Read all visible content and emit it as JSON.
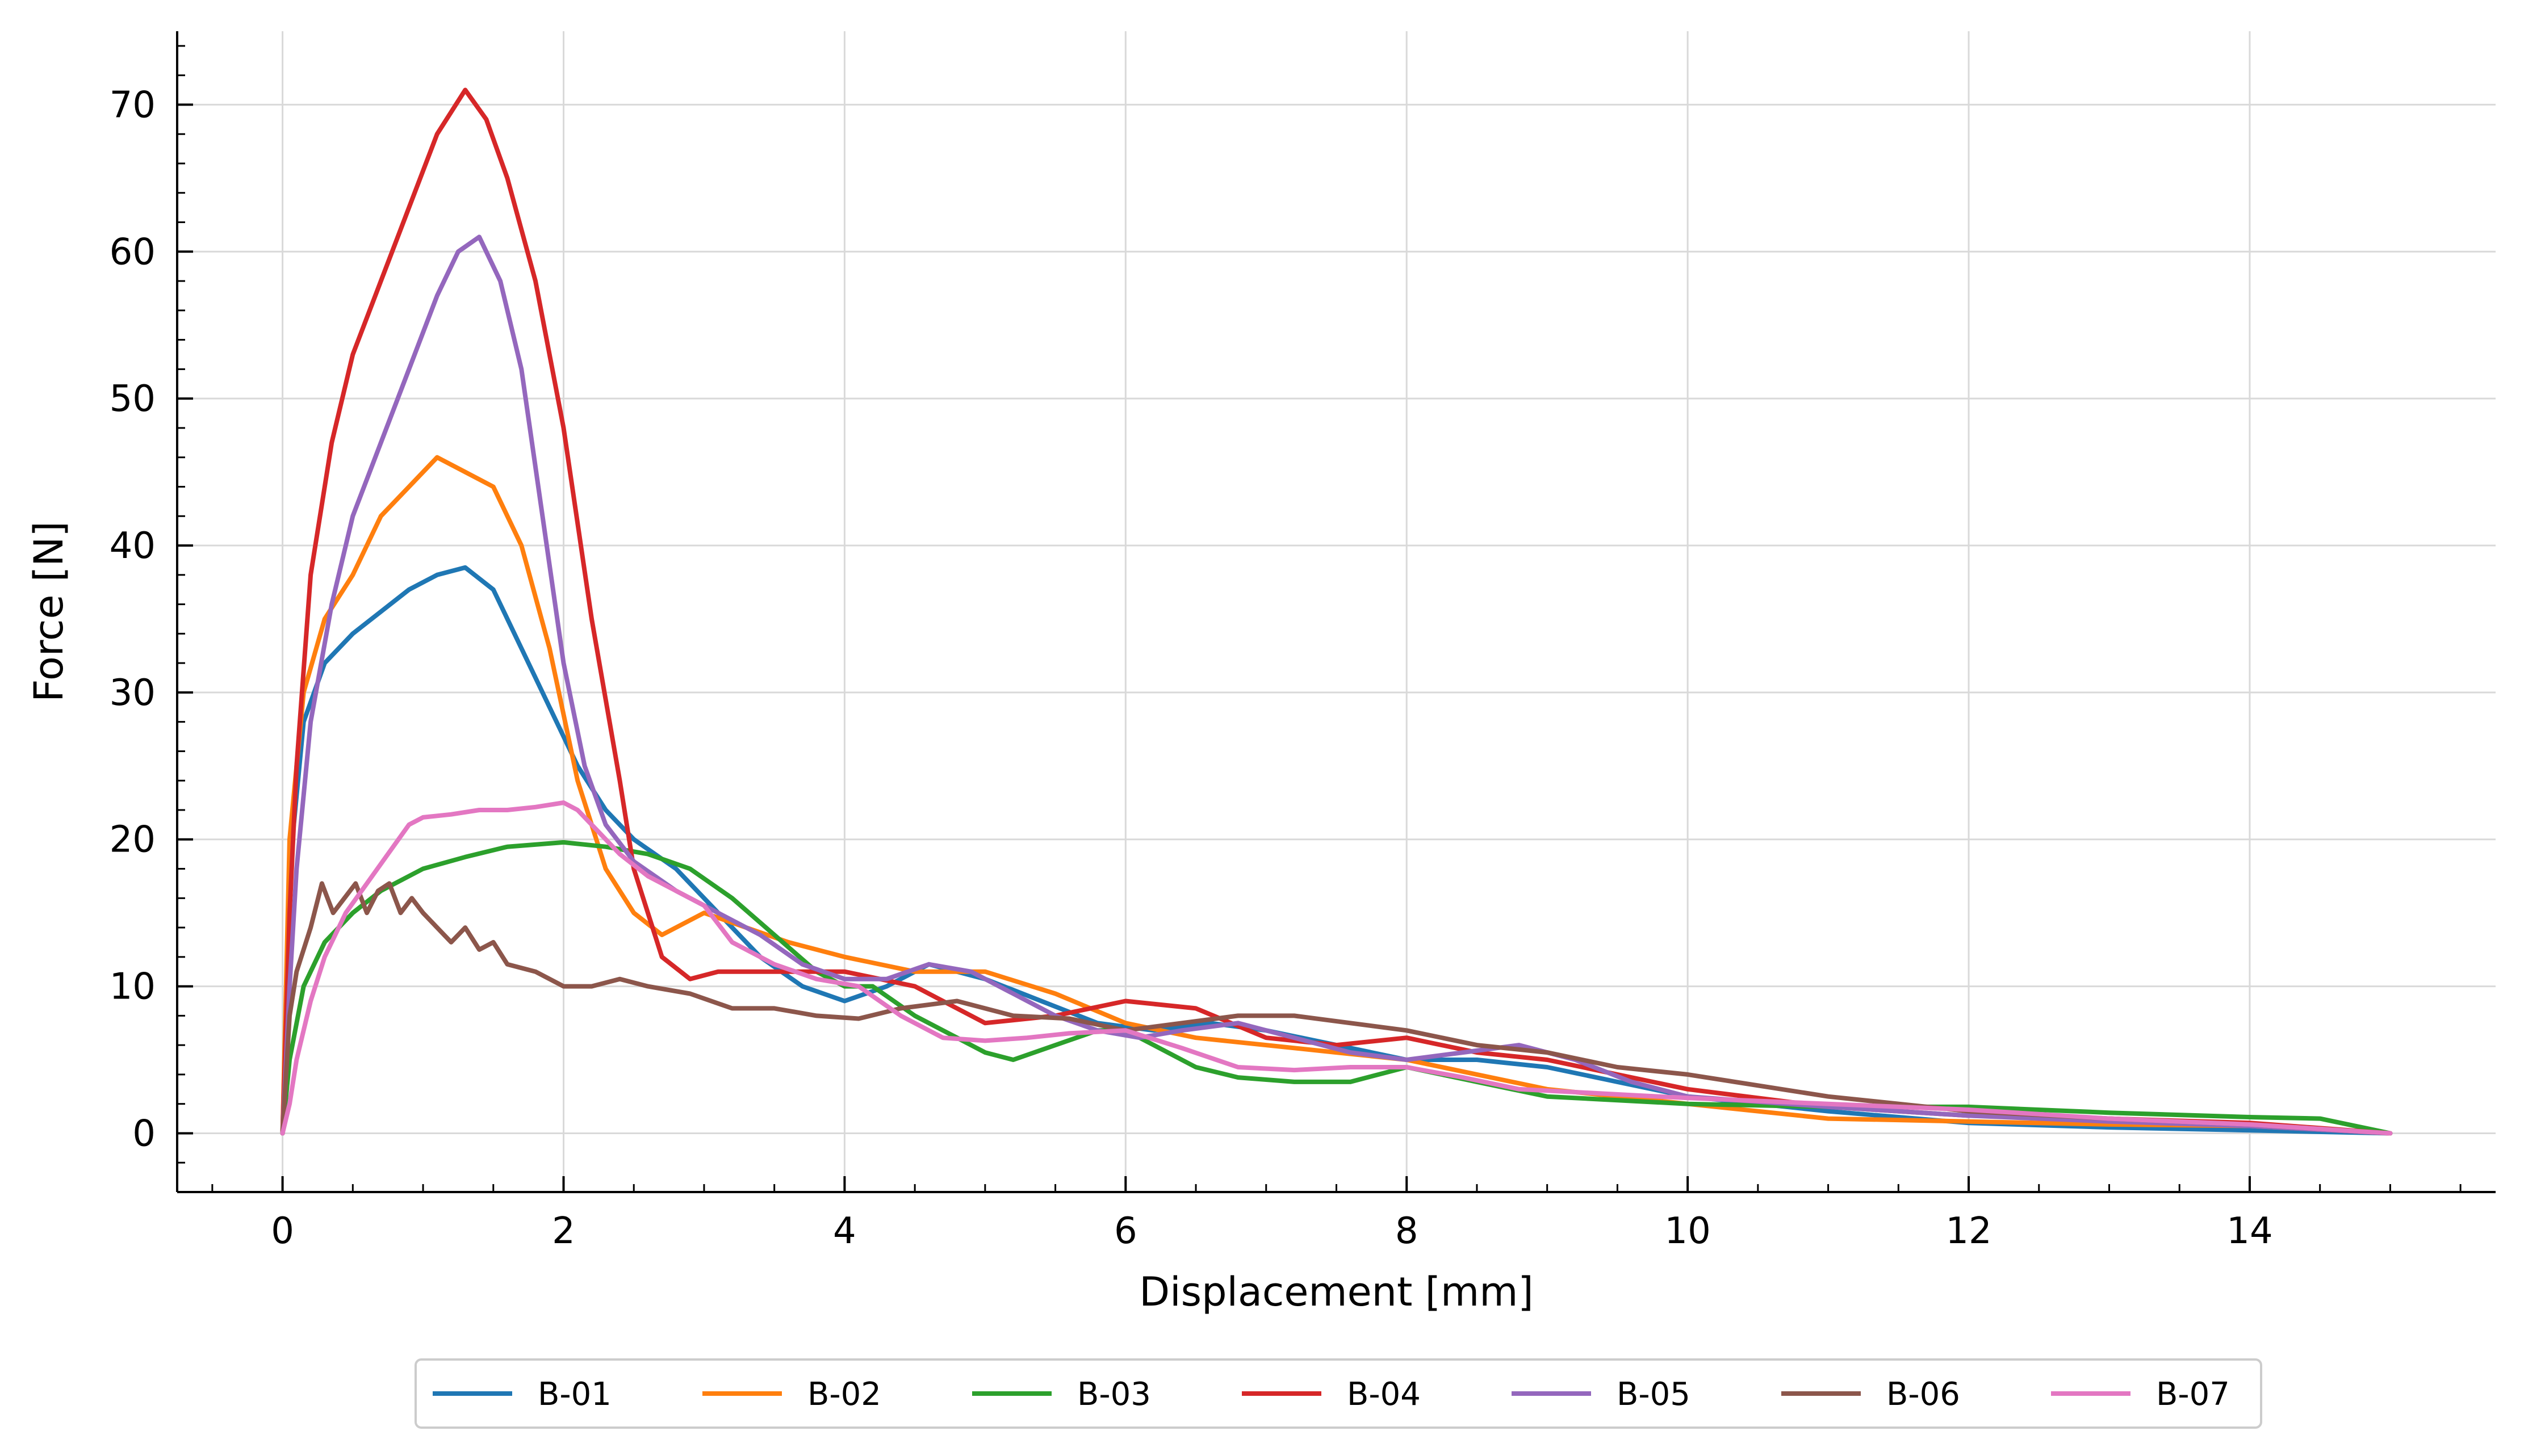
{
  "chart_data": {
    "type": "line",
    "title": "",
    "xlabel": "Displacement [mm]",
    "ylabel": "Force [N]",
    "xlim": [
      -0.75,
      15.75
    ],
    "ylim": [
      -4,
      75
    ],
    "xticks": [
      0,
      2,
      4,
      6,
      8,
      10,
      12,
      14
    ],
    "yticks": [
      0,
      10,
      20,
      30,
      40,
      50,
      60,
      70
    ],
    "grid": true,
    "legend_position": "bottom-center-outside",
    "series": [
      {
        "name": "B-01",
        "color": "#1f77b4",
        "x": [
          0,
          0.05,
          0.15,
          0.3,
          0.5,
          0.7,
          0.9,
          1.1,
          1.3,
          1.5,
          1.7,
          1.9,
          2.1,
          2.3,
          2.5,
          2.8,
          3.1,
          3.4,
          3.7,
          4.0,
          4.3,
          4.6,
          5.0,
          5.4,
          5.8,
          6.2,
          6.6,
          7.0,
          7.5,
          8.0,
          8.5,
          9.0,
          9.5,
          10.0,
          11.0,
          12.0,
          13.0,
          14.0,
          15.0
        ],
        "y": [
          0,
          18,
          28,
          32,
          34,
          35.5,
          37,
          38,
          38.5,
          37,
          33,
          29,
          25,
          22,
          20,
          18,
          15,
          12,
          10,
          9,
          10,
          11.5,
          10.5,
          9,
          7.5,
          7,
          7.5,
          7,
          6,
          5,
          5,
          4.5,
          3.5,
          2.5,
          1.5,
          0.7,
          0.4,
          0.2,
          0
        ]
      },
      {
        "name": "B-02",
        "color": "#ff7f0e",
        "x": [
          0,
          0.05,
          0.15,
          0.3,
          0.5,
          0.7,
          0.9,
          1.1,
          1.3,
          1.5,
          1.7,
          1.9,
          2.1,
          2.3,
          2.5,
          2.7,
          3.0,
          3.3,
          3.6,
          4.0,
          4.5,
          5.0,
          5.5,
          6.0,
          6.5,
          7.0,
          7.5,
          8.0,
          8.5,
          9.0,
          9.5,
          10.0,
          11.0,
          12.0,
          13.0,
          14.0,
          15.0
        ],
        "y": [
          0,
          20,
          30,
          35,
          38,
          42,
          44,
          46,
          45,
          44,
          40,
          33,
          24,
          18,
          15,
          13.5,
          15,
          14,
          13,
          12,
          11,
          11,
          9.5,
          7.5,
          6.5,
          6,
          5.5,
          5,
          4,
          3,
          2.5,
          2,
          1,
          0.8,
          0.6,
          0.5,
          0
        ]
      },
      {
        "name": "B-03",
        "color": "#2ca02c",
        "x": [
          0,
          0.05,
          0.15,
          0.3,
          0.5,
          0.7,
          1.0,
          1.3,
          1.6,
          2.0,
          2.3,
          2.6,
          2.9,
          3.2,
          3.5,
          3.8,
          4.0,
          4.2,
          4.5,
          4.8,
          5.0,
          5.2,
          5.5,
          5.8,
          6.0,
          6.2,
          6.5,
          6.8,
          7.2,
          7.6,
          8.0,
          8.5,
          9.0,
          10.0,
          11.0,
          12.0,
          13.0,
          14.0,
          14.5,
          15.0
        ],
        "y": [
          0,
          5,
          10,
          13,
          15,
          16.5,
          18,
          18.8,
          19.5,
          19.8,
          19.5,
          19,
          18,
          16,
          13.5,
          11,
          10,
          10,
          8,
          6.5,
          5.5,
          5,
          6,
          7,
          7,
          6,
          4.5,
          3.8,
          3.5,
          3.5,
          4.5,
          3.5,
          2.5,
          2,
          1.8,
          1.8,
          1.4,
          1.1,
          1,
          0
        ]
      },
      {
        "name": "B-04",
        "color": "#d62728",
        "x": [
          0,
          0.05,
          0.1,
          0.2,
          0.35,
          0.5,
          0.7,
          0.9,
          1.1,
          1.3,
          1.45,
          1.6,
          1.8,
          2.0,
          2.2,
          2.4,
          2.5,
          2.7,
          2.9,
          3.1,
          3.3,
          3.6,
          4.0,
          4.5,
          5.0,
          5.5,
          6.0,
          6.5,
          7.0,
          7.5,
          8.0,
          8.5,
          9.0,
          9.5,
          10.0,
          11.0,
          12.0,
          13.0,
          14.0,
          15.0
        ],
        "y": [
          0,
          15,
          25,
          38,
          47,
          53,
          58,
          63,
          68,
          71,
          69,
          65,
          58,
          48,
          35,
          24,
          18,
          12,
          10.5,
          11,
          11,
          11,
          11,
          10,
          7.5,
          8,
          9,
          8.5,
          6.5,
          6,
          6.5,
          5.5,
          5,
          4,
          3,
          1.8,
          1.2,
          1,
          0.7,
          0
        ]
      },
      {
        "name": "B-05",
        "color": "#9467bd",
        "x": [
          0,
          0.05,
          0.1,
          0.2,
          0.35,
          0.5,
          0.7,
          0.9,
          1.1,
          1.25,
          1.4,
          1.55,
          1.7,
          1.85,
          2.0,
          2.15,
          2.3,
          2.5,
          2.8,
          3.1,
          3.4,
          3.7,
          4.0,
          4.3,
          4.6,
          4.9,
          5.2,
          5.5,
          5.8,
          6.1,
          6.4,
          6.8,
          7.2,
          7.6,
          8.0,
          8.4,
          8.8,
          9.2,
          9.6,
          10.0,
          11.0,
          12.0,
          13.0,
          14.0,
          15.0
        ],
        "y": [
          0,
          10,
          18,
          28,
          36,
          42,
          47,
          52,
          57,
          60,
          61,
          58,
          52,
          42,
          32,
          25,
          21,
          18.5,
          16.5,
          15,
          13.5,
          11.5,
          10.5,
          10.5,
          11.5,
          11,
          9.5,
          8,
          7,
          6.5,
          7,
          7.5,
          6.5,
          5.5,
          5,
          5.5,
          6,
          5,
          3.5,
          2.5,
          1.8,
          1.2,
          0.8,
          0.5,
          0
        ]
      },
      {
        "name": "B-06",
        "color": "#8c564b",
        "x": [
          0,
          0.05,
          0.1,
          0.2,
          0.28,
          0.36,
          0.44,
          0.52,
          0.6,
          0.68,
          0.76,
          0.84,
          0.92,
          1.0,
          1.1,
          1.2,
          1.3,
          1.4,
          1.5,
          1.6,
          1.8,
          2.0,
          2.2,
          2.4,
          2.6,
          2.9,
          3.2,
          3.5,
          3.8,
          4.1,
          4.4,
          4.8,
          5.2,
          5.6,
          6.0,
          6.4,
          6.8,
          7.2,
          7.6,
          8.0,
          8.5,
          9.0,
          9.5,
          10.0,
          11.0,
          12.0,
          13.0,
          14.0,
          15.0
        ],
        "y": [
          0,
          8,
          11,
          14,
          17,
          15,
          16,
          17,
          15,
          16.5,
          17,
          15,
          16,
          15,
          14,
          13,
          14,
          12.5,
          13,
          11.5,
          11,
          10,
          10,
          10.5,
          10,
          9.5,
          8.5,
          8.5,
          8,
          7.8,
          8.5,
          9,
          8,
          7.8,
          7,
          7.5,
          8,
          8,
          7.5,
          7,
          6,
          5.5,
          4.5,
          4,
          2.5,
          1.5,
          1,
          0.6,
          0
        ]
      },
      {
        "name": "B-07",
        "color": "#e377c2",
        "x": [
          0,
          0.05,
          0.1,
          0.2,
          0.3,
          0.45,
          0.6,
          0.75,
          0.9,
          1.0,
          1.2,
          1.4,
          1.6,
          1.8,
          2.0,
          2.1,
          2.2,
          2.4,
          2.6,
          2.8,
          3.0,
          3.2,
          3.5,
          3.8,
          4.1,
          4.4,
          4.7,
          5.0,
          5.3,
          5.6,
          6.0,
          6.4,
          6.8,
          7.2,
          7.6,
          8.0,
          8.4,
          8.8,
          9.2,
          9.6,
          10.0,
          11.0,
          12.0,
          13.0,
          14.0,
          15.0
        ],
        "y": [
          0,
          2,
          5,
          9,
          12,
          15,
          17,
          19,
          21,
          21.5,
          21.7,
          22,
          22,
          22.2,
          22.5,
          22,
          21,
          19,
          17.5,
          16.5,
          15.5,
          13,
          11.5,
          10.5,
          10,
          8,
          6.5,
          6.3,
          6.5,
          6.8,
          7,
          5.8,
          4.5,
          4.3,
          4.5,
          4.5,
          3.8,
          3,
          2.8,
          2.6,
          2.4,
          2,
          1.6,
          1,
          0.6,
          0
        ]
      }
    ]
  }
}
